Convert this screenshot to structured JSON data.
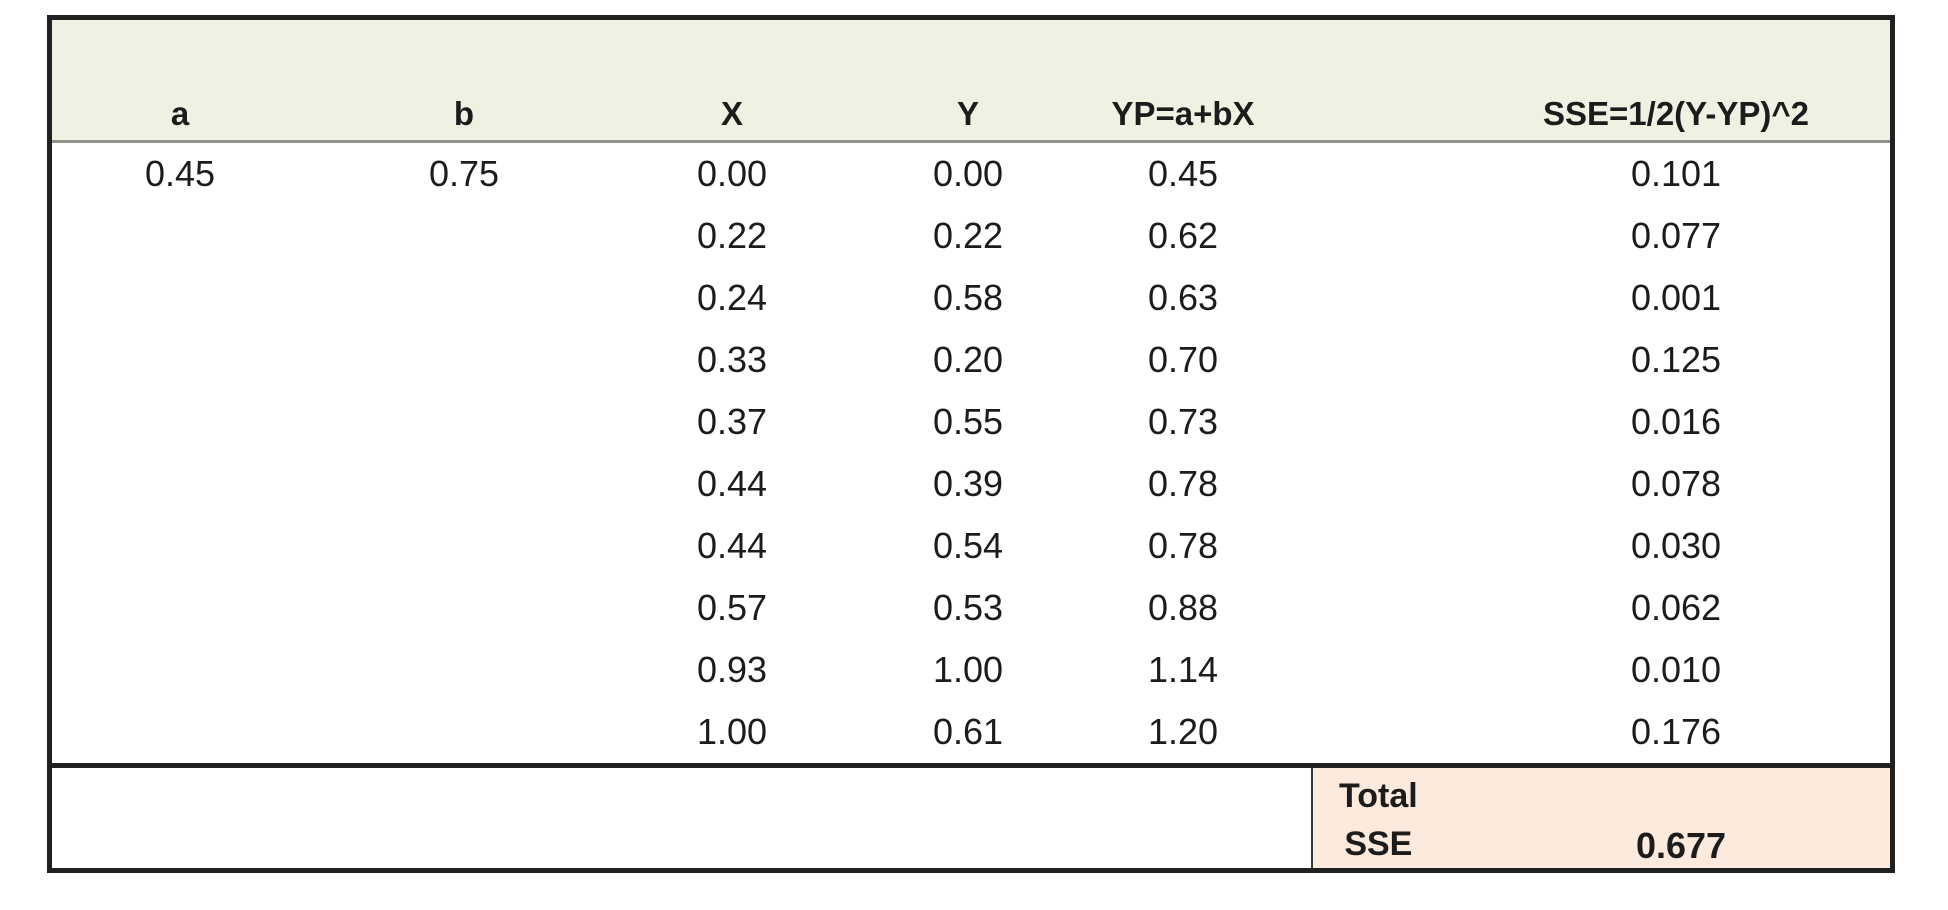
{
  "colors": {
    "header_fill": "#EEF2E3",
    "total_fill": "#FCEADD",
    "border_dark": "#202020",
    "header_rule": "#8E9288",
    "text": "#1C1C1C"
  },
  "table": {
    "columns": [
      {
        "key": "a",
        "label": "a"
      },
      {
        "key": "b",
        "label": "b"
      },
      {
        "key": "x",
        "label": "X"
      },
      {
        "key": "y",
        "label": "Y"
      },
      {
        "key": "yp",
        "label": "YP=a+bX"
      },
      {
        "key": "sse",
        "label": "SSE=1/2(Y-YP)^2"
      }
    ],
    "rows": [
      [
        "0.45",
        "0.75",
        "0.00",
        "0.00",
        "0.45",
        "0.101"
      ],
      [
        "",
        "",
        "0.22",
        "0.22",
        "0.62",
        "0.077"
      ],
      [
        "",
        "",
        "0.24",
        "0.58",
        "0.63",
        "0.001"
      ],
      [
        "",
        "",
        "0.33",
        "0.20",
        "0.70",
        "0.125"
      ],
      [
        "",
        "",
        "0.37",
        "0.55",
        "0.73",
        "0.016"
      ],
      [
        "",
        "",
        "0.44",
        "0.39",
        "0.78",
        "0.078"
      ],
      [
        "",
        "",
        "0.44",
        "0.54",
        "0.78",
        "0.030"
      ],
      [
        "",
        "",
        "0.57",
        "0.53",
        "0.88",
        "0.062"
      ],
      [
        "",
        "",
        "0.93",
        "1.00",
        "1.14",
        "0.010"
      ],
      [
        "",
        "",
        "1.00",
        "0.61",
        "1.20",
        "0.176"
      ]
    ],
    "total": {
      "label_line1": "Total",
      "label_line2": "SSE",
      "value": "0.677"
    }
  },
  "chart_data": {
    "type": "table",
    "columns": [
      "a",
      "b",
      "X",
      "Y",
      "YP=a+bX",
      "SSE=1/2(Y-YP)^2"
    ],
    "a": 0.45,
    "b": 0.75,
    "X": [
      0.0,
      0.22,
      0.24,
      0.33,
      0.37,
      0.44,
      0.44,
      0.57,
      0.93,
      1.0
    ],
    "Y": [
      0.0,
      0.22,
      0.58,
      0.2,
      0.55,
      0.39,
      0.54,
      0.53,
      1.0,
      0.61
    ],
    "YP": [
      0.45,
      0.62,
      0.63,
      0.7,
      0.73,
      0.78,
      0.78,
      0.88,
      1.14,
      1.2
    ],
    "SSE": [
      0.101,
      0.077,
      0.001,
      0.125,
      0.016,
      0.078,
      0.03,
      0.062,
      0.01,
      0.176
    ],
    "total_sse": 0.677
  }
}
